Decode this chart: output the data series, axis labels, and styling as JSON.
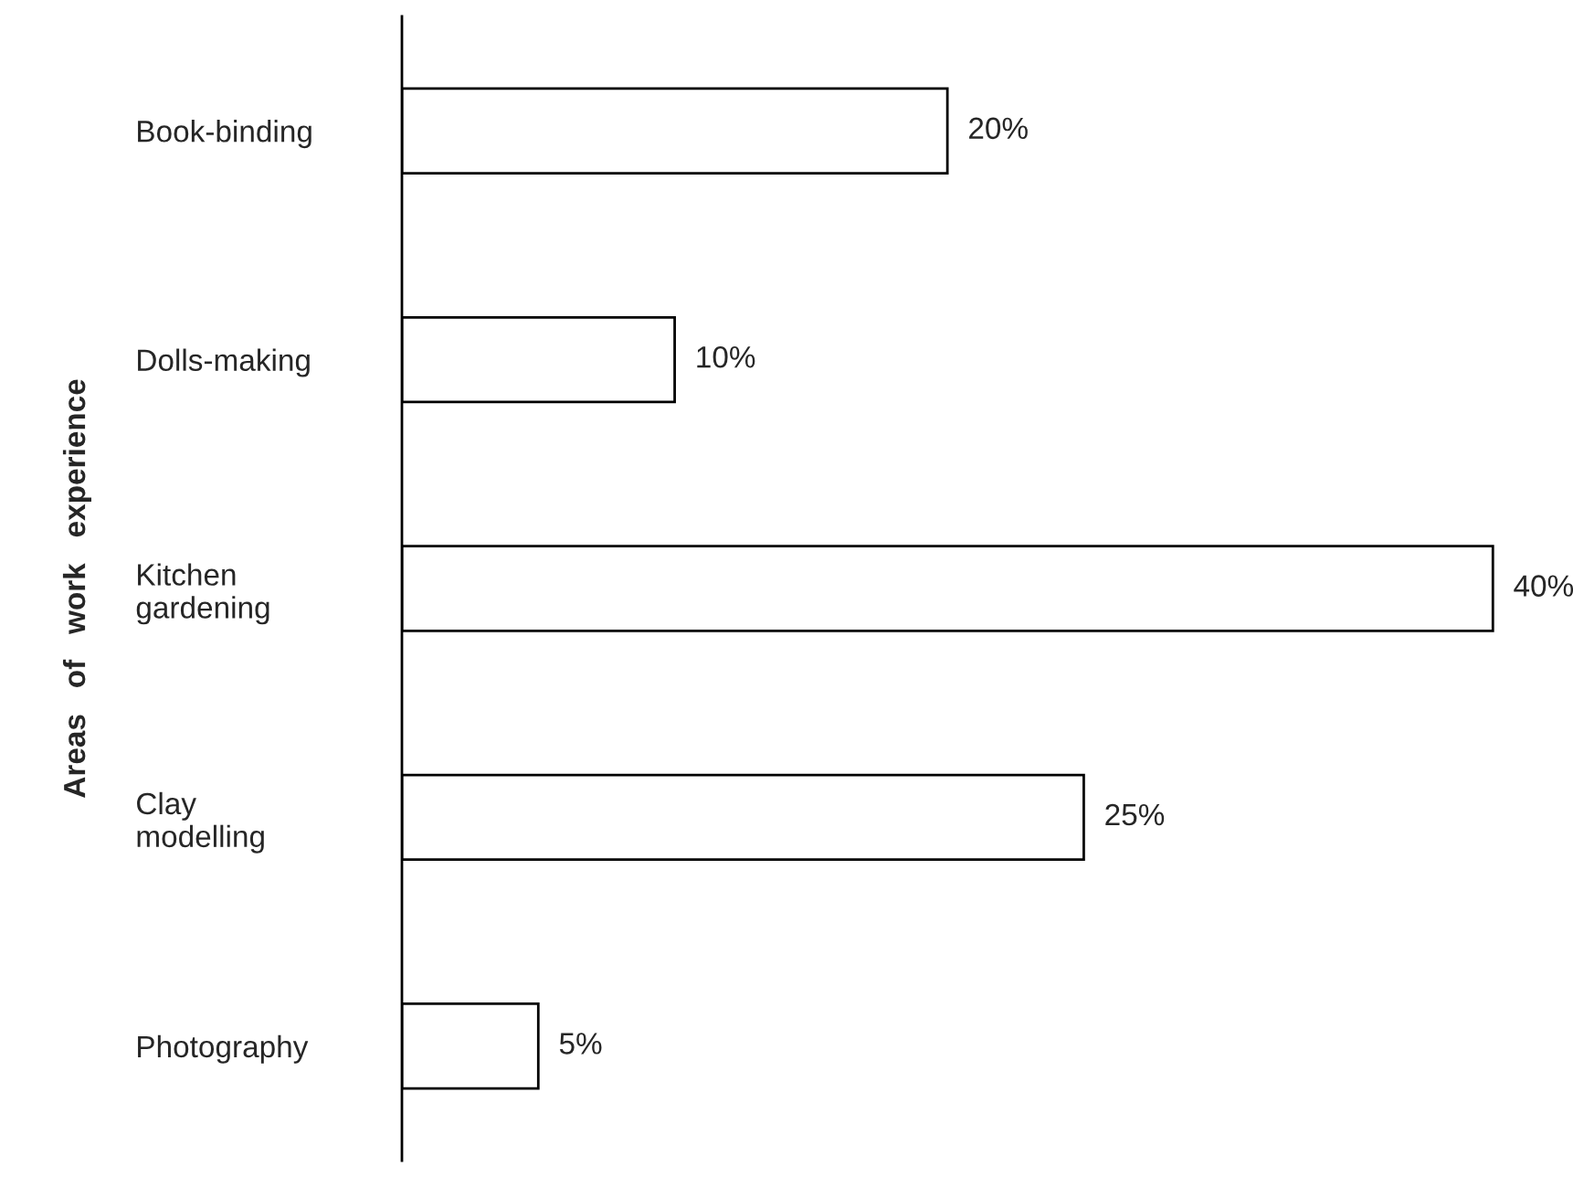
{
  "chart_data": {
    "type": "bar",
    "orientation": "horizontal",
    "ylabel": "Areas   of   work   experience",
    "categories": [
      "Book-binding",
      "Dolls-making",
      "Kitchen\ngardening",
      "Clay\nmodelling",
      "Photography"
    ],
    "values": [
      20,
      10,
      40,
      25,
      5
    ],
    "value_labels": [
      "20%",
      "10%",
      "40%",
      "25%",
      "5%"
    ],
    "color": "#ffffff",
    "tick_labels": "y",
    "grid": false,
    "legend": false
  }
}
